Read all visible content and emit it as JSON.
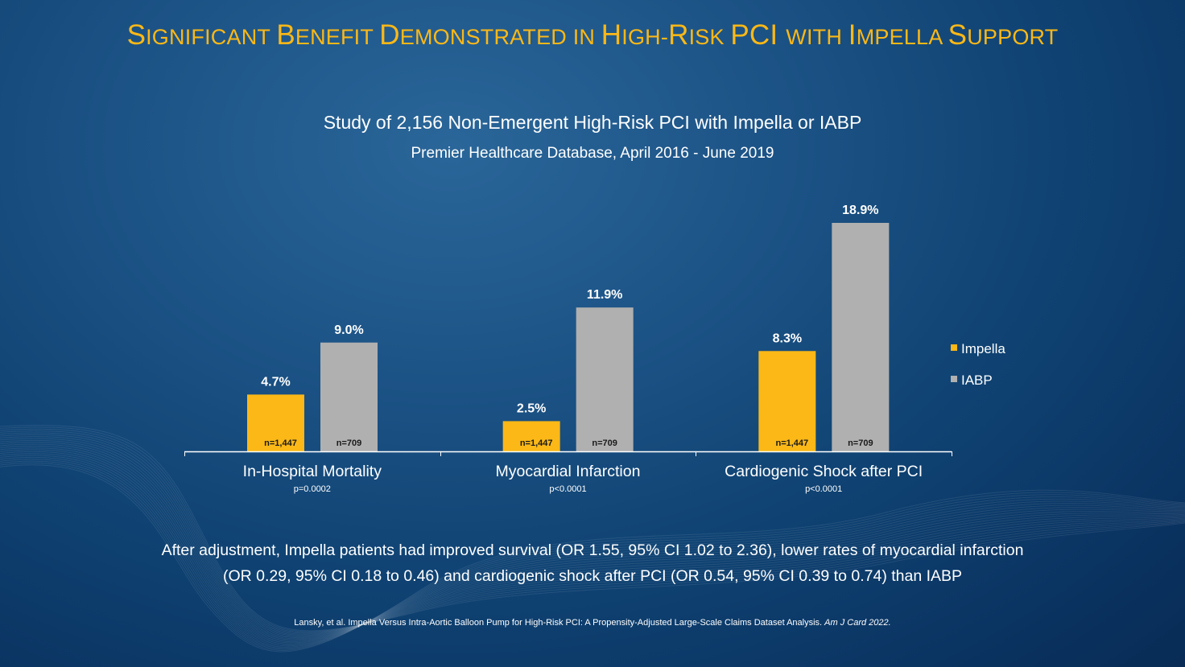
{
  "slide": {
    "title_parts": [
      {
        "text": "S",
        "small": false
      },
      {
        "text": "IGNIFICANT ",
        "small": true
      },
      {
        "text": "B",
        "small": false
      },
      {
        "text": "ENEFIT ",
        "small": true
      },
      {
        "text": "D",
        "small": false
      },
      {
        "text": "EMONSTRATED IN ",
        "small": true
      },
      {
        "text": "H",
        "small": false
      },
      {
        "text": "IGH-",
        "small": true
      },
      {
        "text": "R",
        "small": false
      },
      {
        "text": "ISK ",
        "small": true
      },
      {
        "text": "PCI ",
        "small": false
      },
      {
        "text": "WITH ",
        "small": true
      },
      {
        "text": "I",
        "small": false
      },
      {
        "text": "MPELLA ",
        "small": true
      },
      {
        "text": "S",
        "small": false
      },
      {
        "text": "UPPORT",
        "small": true
      }
    ],
    "title": "Significant Benefit Demonstrated in High-Risk PCI with Impella Support",
    "subtitle": "Study of 2,156 Non-Emergent High-Risk PCI with Impella or IABP",
    "subtitle2": "Premier Healthcare Database, April 2016 - June 2019",
    "summary_line1": "After adjustment, Impella patients had improved survival (OR 1.55, 95% CI 1.02 to 2.36), lower rates of myocardial infarction",
    "summary_line2": "(OR 0.29, 95% CI 0.18 to 0.46) and cardiogenic shock after PCI (OR 0.54, 95% CI 0.39 to 0.74) than IABP",
    "citation_main": "Lansky, et al. Impella Versus Intra-Aortic Balloon Pump for High-Risk PCI: A Propensity-Adjusted Large-Scale Claims Dataset Analysis. ",
    "citation_journal": "Am J Card 2022."
  },
  "chart_data": {
    "type": "bar",
    "title": "Study of 2,156 Non-Emergent High-Risk PCI with Impella or IABP",
    "subtitle": "Premier Healthcare Database, April 2016 - June 2019",
    "xlabel": "",
    "ylabel": "",
    "ylim": [
      0,
      20
    ],
    "grid": false,
    "legend_position": "right",
    "categories": [
      "In-Hospital Mortality",
      "Myocardial Infarction",
      "Cardiogenic Shock after PCI"
    ],
    "p_values": [
      "p=0.0002",
      "p<0.0001",
      "p<0.0001"
    ],
    "series": [
      {
        "name": "Impella",
        "color": "#fbb817",
        "values": [
          4.7,
          2.5,
          8.3
        ],
        "labels": [
          "4.7%",
          "2.5%",
          "8.3%"
        ],
        "n_labels": [
          "n=1,447",
          "n=1,447",
          "n=1,447"
        ]
      },
      {
        "name": "IABP",
        "color": "#b0b0b0",
        "values": [
          9.0,
          11.9,
          18.9
        ],
        "labels": [
          "9.0%",
          "11.9%",
          "18.9%"
        ],
        "n_labels": [
          "n=709",
          "n=709",
          "n=709"
        ]
      }
    ]
  }
}
